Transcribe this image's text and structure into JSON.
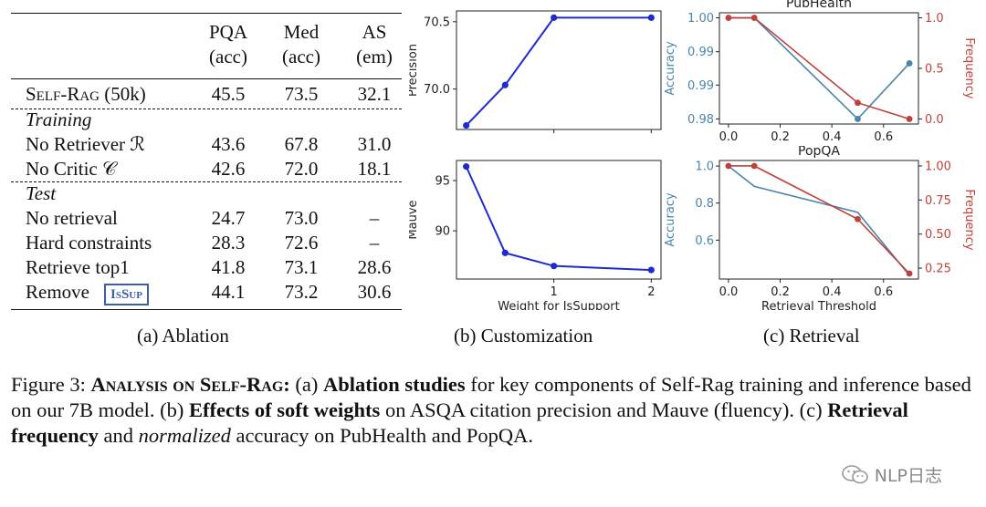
{
  "ablation": {
    "headers": [
      {
        "top": "",
        "bottom": ""
      },
      {
        "top": "PQA",
        "bottom": "(acc)"
      },
      {
        "top": "Med",
        "bottom": "(acc)"
      },
      {
        "top": "AS",
        "bottom": "(em)"
      }
    ],
    "main_row": {
      "label": "Self-Rag (50k)",
      "values": [
        "45.5",
        "73.5",
        "32.1"
      ]
    },
    "training_label": "Training",
    "training_rows": [
      {
        "label": "No Retriever ℛ",
        "values": [
          "43.6",
          "67.8",
          "31.0"
        ]
      },
      {
        "label": "No Critic 𝒞",
        "values": [
          "42.6",
          "72.0",
          "18.1"
        ]
      }
    ],
    "test_label": "Test",
    "test_rows": [
      {
        "label": "No retrieval",
        "values": [
          "24.7",
          "73.0",
          "–"
        ]
      },
      {
        "label": "Hard constraints",
        "values": [
          "28.3",
          "72.6",
          "–"
        ]
      },
      {
        "label": "Retrieve top1",
        "values": [
          "41.8",
          "73.1",
          "28.6"
        ]
      },
      {
        "label": "Remove",
        "badge": "IsSup",
        "values": [
          "44.1",
          "73.2",
          "30.6"
        ]
      }
    ],
    "caption": "(a) Ablation"
  },
  "customization_caption": "(b) Customization",
  "retrieval_caption": "(c) Retrieval",
  "figure_caption": {
    "prefix": "Figure 3: ",
    "title": "Analysis on Self-Rag:",
    "p1": " (a) ",
    "b1": "Ablation studies",
    "p2": " for key components of Self-Rag training and inference based on our 7B model. (b) ",
    "b2": "Effects of soft weights",
    "p3": " on ASQA citation precision and Mauve (fluency). (c) ",
    "b3": "Retrieval frequency",
    "p4": " and ",
    "i1": "normalized",
    "p5": " accuracy on PubHealth and PopQA."
  },
  "watermark": "NLP日志",
  "colors": {
    "blue_line": "#1f2bd1",
    "accuracy": "#4a85ad",
    "frequency": "#c0403a"
  },
  "chart_data": [
    {
      "type": "line",
      "x": [
        0.1,
        0.5,
        1.0,
        2.0
      ],
      "series": [
        {
          "values": [
            69.73,
            70.03,
            70.53,
            70.53
          ]
        }
      ],
      "xlabel": "",
      "ylabel": "Precision",
      "xticks": [
        "1",
        "2"
      ],
      "yticks": [
        "70.0",
        "70.5"
      ],
      "xlim": [
        0.0,
        2.1
      ],
      "ylim": [
        69.7,
        70.58
      ]
    },
    {
      "type": "line",
      "x": [
        0.1,
        0.5,
        1.0,
        2.0
      ],
      "series": [
        {
          "values": [
            96.4,
            87.8,
            86.5,
            86.1
          ]
        }
      ],
      "xlabel": "Weight for IsSupport",
      "ylabel": "Mauve",
      "xticks": [
        "1",
        "2"
      ],
      "yticks": [
        "90",
        "95"
      ],
      "xlim": [
        0.0,
        2.1
      ],
      "ylim": [
        85.2,
        97.0
      ]
    },
    {
      "type": "line",
      "title": "PubHealth",
      "x": [
        0.0,
        0.1,
        0.5,
        0.7
      ],
      "series": [
        {
          "name": "Accuracy",
          "values": [
            1.0,
            1.0,
            0.98,
            0.991
          ]
        },
        {
          "name": "Frequency",
          "values": [
            1.0,
            1.0,
            0.16,
            0.0
          ]
        }
      ],
      "ylabel": "Accuracy",
      "ylabel_right": "Frequency",
      "xticks": [
        "0.0",
        "0.2",
        "0.4",
        "0.6"
      ],
      "yticks_left": [
        "0.98",
        "0.99",
        "0.99",
        "1.00"
      ],
      "yticks_right": [
        "0.0",
        "0.5",
        "1.0"
      ],
      "xlim": [
        -0.035,
        0.735
      ],
      "ylim": [
        0.979,
        1.001
      ],
      "ylim_right": [
        -0.05,
        1.05
      ]
    },
    {
      "type": "line",
      "title": "PopQA",
      "x": [
        0.0,
        0.1,
        0.5,
        0.7
      ],
      "series": [
        {
          "name": "Accuracy",
          "values": [
            1.0,
            0.89,
            0.75,
            0.41
          ]
        },
        {
          "name": "Frequency",
          "values": [
            1.0,
            1.0,
            0.61,
            0.21
          ]
        }
      ],
      "xlabel": "Retrieval Threshold",
      "ylabel": "Accuracy",
      "ylabel_right": "Frequency",
      "xticks": [
        "0.0",
        "0.2",
        "0.4",
        "0.6"
      ],
      "yticks_left": [
        "0.6",
        "0.8",
        "1.0"
      ],
      "yticks_right": [
        "0.25",
        "0.50",
        "0.75",
        "1.00"
      ],
      "xlim": [
        -0.035,
        0.735
      ],
      "ylim": [
        0.39,
        1.03
      ],
      "ylim_right": [
        0.17,
        1.04
      ]
    }
  ]
}
